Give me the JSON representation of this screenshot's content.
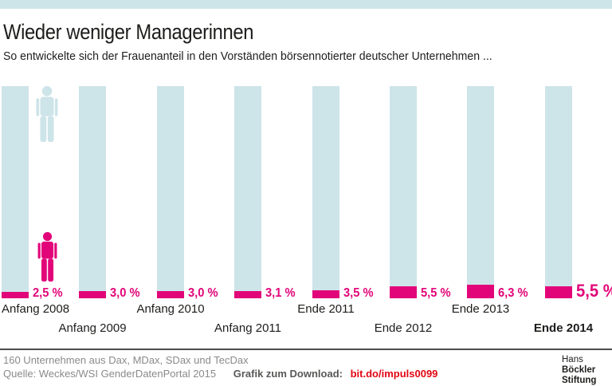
{
  "page": {
    "title": "Wieder weniger Managerinnen",
    "subtitle": "So entwickelte sich der Frauenanteil in den Vorständen börsennotierter deutscher Unternehmen ..."
  },
  "chart_data": {
    "type": "bar",
    "title": "Wieder weniger Managerinnen",
    "subtitle": "So entwickelte sich der Frauenanteil in den Vorständen börsennotierter deutscher Unternehmen ...",
    "categories": [
      "Anfang 2008",
      "Anfang 2009",
      "Anfang 2010",
      "Anfang 2011",
      "Ende 2011",
      "Ende 2012",
      "Ende 2013",
      "Ende 2014"
    ],
    "values": [
      2.5,
      3.0,
      3.0,
      3.1,
      3.5,
      5.5,
      6.3,
      5.5
    ],
    "value_labels": [
      "2,5 %",
      "3,0 %",
      "3,0 %",
      "3,1 %",
      "3,5 %",
      "5,5 %",
      "6,3 %",
      "5,5 %"
    ],
    "unit": "%",
    "ylim": [
      0,
      100
    ],
    "highlight_index": 7,
    "legend": "none",
    "grid": "off"
  },
  "icons": {
    "man": "man-pictogram",
    "woman": "woman-pictogram"
  },
  "colors": {
    "accent_pink": "#e20579",
    "bar_blue": "#cde4e9",
    "link_red": "#e30613",
    "logo_blocks": [
      "#8f1007",
      "#dd2a10",
      "#f59b00"
    ]
  },
  "footer": {
    "note": "160 Unternehmen aus Dax, MDax, SDax und TecDax",
    "source": "Quelle: Weckes/WSI GenderDatenPortal 2015",
    "download_label": "Grafik zum Download:",
    "download_link": "bit.do/impuls0099",
    "logo": {
      "line1_regular": "Hans ",
      "line1_bold": "Böckler",
      "line2_bold": "Stiftung"
    }
  }
}
